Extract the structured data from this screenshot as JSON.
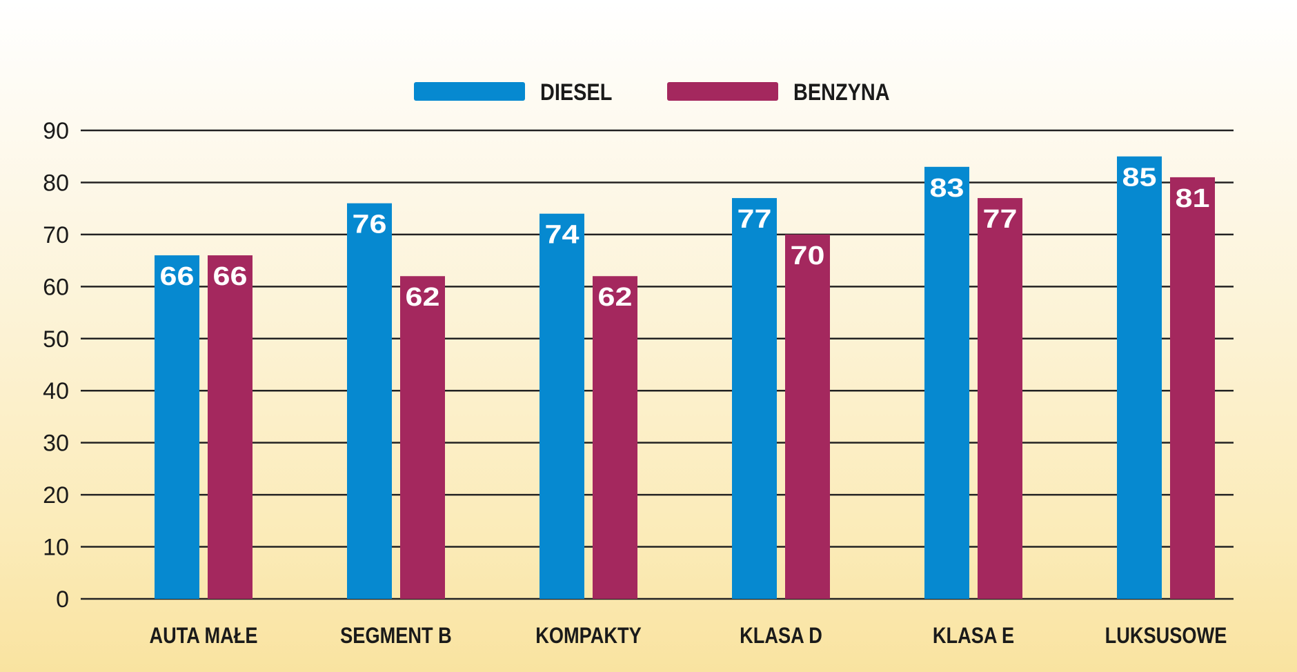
{
  "chart_data": {
    "type": "bar",
    "categories": [
      "AUTA MAŁE",
      "SEGMENT B",
      "KOMPAKTY",
      "KLASA D",
      "KLASA E",
      "LUKSUSOWE"
    ],
    "series": [
      {
        "name": "DIESEL",
        "color": "#0689d0",
        "values": [
          66,
          76,
          74,
          77,
          83,
          85
        ]
      },
      {
        "name": "BENZYNA",
        "color": "#a4285e",
        "values": [
          66,
          62,
          62,
          70,
          77,
          81
        ]
      }
    ],
    "yticks": [
      "0",
      "10",
      "20",
      "30",
      "40",
      "50",
      "60",
      "70",
      "80",
      "90"
    ],
    "ylim": [
      0,
      90
    ],
    "grid": true,
    "legend": "top-center",
    "data_labels": true
  }
}
